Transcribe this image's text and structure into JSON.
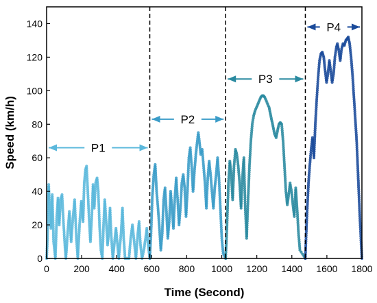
{
  "chart_data": {
    "type": "scatter",
    "xlabel": "Time (Second)",
    "ylabel": "Speed (km/h)",
    "xlim": [
      0,
      1800
    ],
    "ylim": [
      0,
      150
    ],
    "xticks": [
      0,
      200,
      400,
      600,
      800,
      1000,
      1200,
      1400,
      1600,
      1800
    ],
    "yticks": [
      0,
      20,
      40,
      60,
      80,
      100,
      120,
      140
    ],
    "phase_boundaries": [
      589,
      1022,
      1477,
      1800
    ],
    "phases": [
      {
        "label": "P1",
        "x_start": 0,
        "x_end": 589,
        "arrow_y": 66,
        "color": "#5bb8dc",
        "keypoints": [
          [
            0,
            0
          ],
          [
            5,
            12
          ],
          [
            12,
            44
          ],
          [
            18,
            30
          ],
          [
            25,
            18
          ],
          [
            32,
            38
          ],
          [
            40,
            10
          ],
          [
            50,
            0
          ],
          [
            58,
            25
          ],
          [
            65,
            36
          ],
          [
            72,
            20
          ],
          [
            80,
            35
          ],
          [
            88,
            38
          ],
          [
            96,
            22
          ],
          [
            104,
            8
          ],
          [
            110,
            0
          ],
          [
            120,
            15
          ],
          [
            130,
            28
          ],
          [
            140,
            10
          ],
          [
            150,
            24
          ],
          [
            160,
            35
          ],
          [
            170,
            12
          ],
          [
            178,
            0
          ],
          [
            188,
            20
          ],
          [
            198,
            34
          ],
          [
            208,
            22
          ],
          [
            215,
            45
          ],
          [
            222,
            53
          ],
          [
            228,
            55
          ],
          [
            235,
            40
          ],
          [
            242,
            25
          ],
          [
            250,
            10
          ],
          [
            258,
            25
          ],
          [
            265,
            44
          ],
          [
            272,
            30
          ],
          [
            280,
            45
          ],
          [
            288,
            48
          ],
          [
            295,
            40
          ],
          [
            302,
            20
          ],
          [
            310,
            5
          ],
          [
            318,
            0
          ],
          [
            325,
            20
          ],
          [
            332,
            35
          ],
          [
            340,
            22
          ],
          [
            348,
            8
          ],
          [
            355,
            15
          ],
          [
            362,
            30
          ],
          [
            370,
            12
          ],
          [
            378,
            0
          ],
          [
            388,
            10
          ],
          [
            396,
            18
          ],
          [
            405,
            8
          ],
          [
            412,
            0
          ],
          [
            425,
            15
          ],
          [
            433,
            30
          ],
          [
            440,
            12
          ],
          [
            448,
            0
          ],
          [
            470,
            0
          ],
          [
            480,
            12
          ],
          [
            490,
            20
          ],
          [
            500,
            10
          ],
          [
            510,
            0
          ],
          [
            520,
            14
          ],
          [
            528,
            22
          ],
          [
            536,
            8
          ],
          [
            545,
            0
          ],
          [
            555,
            5
          ],
          [
            565,
            12
          ],
          [
            572,
            18
          ],
          [
            580,
            8
          ],
          [
            589,
            0
          ]
        ]
      },
      {
        "label": "P2",
        "x_start": 589,
        "x_end": 1022,
        "arrow_y": 83,
        "color": "#3a9cc8",
        "keypoints": [
          [
            589,
            0
          ],
          [
            596,
            15
          ],
          [
            604,
            38
          ],
          [
            612,
            50
          ],
          [
            620,
            56
          ],
          [
            628,
            40
          ],
          [
            636,
            30
          ],
          [
            644,
            18
          ],
          [
            652,
            5
          ],
          [
            660,
            15
          ],
          [
            668,
            35
          ],
          [
            676,
            42
          ],
          [
            684,
            28
          ],
          [
            692,
            12
          ],
          [
            700,
            22
          ],
          [
            708,
            40
          ],
          [
            716,
            30
          ],
          [
            724,
            18
          ],
          [
            732,
            36
          ],
          [
            740,
            48
          ],
          [
            748,
            35
          ],
          [
            756,
            20
          ],
          [
            764,
            30
          ],
          [
            772,
            45
          ],
          [
            780,
            50
          ],
          [
            788,
            42
          ],
          [
            796,
            25
          ],
          [
            804,
            40
          ],
          [
            812,
            60
          ],
          [
            820,
            66
          ],
          [
            828,
            55
          ],
          [
            836,
            40
          ],
          [
            844,
            52
          ],
          [
            852,
            62
          ],
          [
            860,
            70
          ],
          [
            866,
            75
          ],
          [
            872,
            70
          ],
          [
            880,
            62
          ],
          [
            888,
            65
          ],
          [
            896,
            55
          ],
          [
            904,
            45
          ],
          [
            912,
            30
          ],
          [
            920,
            48
          ],
          [
            928,
            58
          ],
          [
            936,
            50
          ],
          [
            944,
            40
          ],
          [
            952,
            30
          ],
          [
            960,
            42
          ],
          [
            968,
            50
          ],
          [
            976,
            60
          ],
          [
            984,
            48
          ],
          [
            992,
            30
          ],
          [
            1000,
            12
          ],
          [
            1008,
            3
          ],
          [
            1022,
            0
          ]
        ]
      },
      {
        "label": "P3",
        "x_start": 1022,
        "x_end": 1477,
        "arrow_y": 107,
        "color": "#2a8aa0",
        "keypoints": [
          [
            1022,
            0
          ],
          [
            1030,
            20
          ],
          [
            1038,
            45
          ],
          [
            1046,
            58
          ],
          [
            1054,
            50
          ],
          [
            1062,
            35
          ],
          [
            1070,
            55
          ],
          [
            1078,
            65
          ],
          [
            1086,
            62
          ],
          [
            1094,
            55
          ],
          [
            1102,
            45
          ],
          [
            1110,
            30
          ],
          [
            1118,
            48
          ],
          [
            1126,
            60
          ],
          [
            1134,
            30
          ],
          [
            1142,
            12
          ],
          [
            1150,
            35
          ],
          [
            1158,
            55
          ],
          [
            1166,
            70
          ],
          [
            1174,
            80
          ],
          [
            1182,
            85
          ],
          [
            1190,
            88
          ],
          [
            1198,
            90
          ],
          [
            1206,
            92
          ],
          [
            1214,
            94
          ],
          [
            1222,
            96
          ],
          [
            1230,
            97
          ],
          [
            1238,
            97
          ],
          [
            1246,
            96
          ],
          [
            1254,
            94
          ],
          [
            1262,
            92
          ],
          [
            1270,
            90
          ],
          [
            1278,
            86
          ],
          [
            1286,
            82
          ],
          [
            1294,
            78
          ],
          [
            1302,
            74
          ],
          [
            1310,
            72
          ],
          [
            1318,
            76
          ],
          [
            1326,
            80
          ],
          [
            1334,
            81
          ],
          [
            1342,
            80
          ],
          [
            1350,
            70
          ],
          [
            1358,
            55
          ],
          [
            1366,
            40
          ],
          [
            1374,
            32
          ],
          [
            1382,
            38
          ],
          [
            1390,
            45
          ],
          [
            1398,
            40
          ],
          [
            1406,
            32
          ],
          [
            1414,
            25
          ],
          [
            1422,
            42
          ],
          [
            1430,
            30
          ],
          [
            1438,
            15
          ],
          [
            1446,
            5
          ],
          [
            1477,
            0
          ]
        ]
      },
      {
        "label": "P4",
        "x_start": 1477,
        "x_end": 1800,
        "arrow_y": 138,
        "color": "#1a4a9a",
        "keypoints": [
          [
            1477,
            0
          ],
          [
            1482,
            15
          ],
          [
            1488,
            30
          ],
          [
            1495,
            45
          ],
          [
            1502,
            55
          ],
          [
            1510,
            65
          ],
          [
            1518,
            72
          ],
          [
            1526,
            60
          ],
          [
            1534,
            80
          ],
          [
            1542,
            95
          ],
          [
            1550,
            108
          ],
          [
            1558,
            118
          ],
          [
            1566,
            122
          ],
          [
            1574,
            123
          ],
          [
            1582,
            120
          ],
          [
            1590,
            112
          ],
          [
            1598,
            105
          ],
          [
            1606,
            110
          ],
          [
            1614,
            118
          ],
          [
            1622,
            112
          ],
          [
            1630,
            105
          ],
          [
            1638,
            110
          ],
          [
            1646,
            120
          ],
          [
            1654,
            126
          ],
          [
            1660,
            128
          ],
          [
            1668,
            124
          ],
          [
            1676,
            118
          ],
          [
            1684,
            125
          ],
          [
            1692,
            128
          ],
          [
            1700,
            127
          ],
          [
            1708,
            130
          ],
          [
            1716,
            131
          ],
          [
            1722,
            132
          ],
          [
            1730,
            128
          ],
          [
            1738,
            120
          ],
          [
            1746,
            110
          ],
          [
            1752,
            100
          ],
          [
            1758,
            90
          ],
          [
            1764,
            80
          ],
          [
            1770,
            70
          ],
          [
            1776,
            55
          ],
          [
            1782,
            40
          ],
          [
            1788,
            25
          ],
          [
            1794,
            12
          ],
          [
            1800,
            0
          ]
        ]
      }
    ]
  }
}
